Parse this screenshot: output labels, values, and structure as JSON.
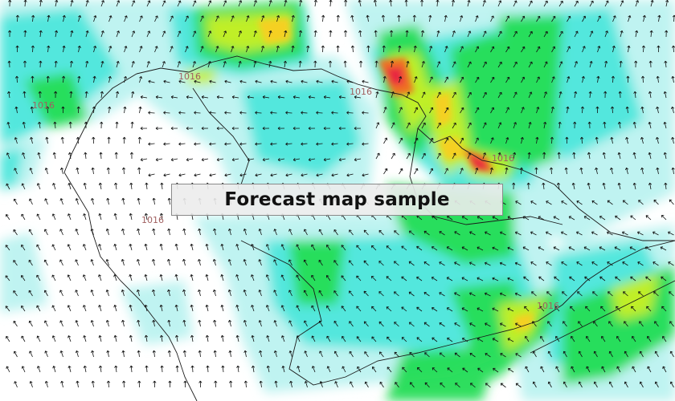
{
  "overlay": {
    "title": "Forecast map sample"
  },
  "isobars": [
    {
      "id": "isobar-west-coast",
      "label": "1016"
    },
    {
      "id": "isobar-north-gulf",
      "label": "1016"
    },
    {
      "id": "isobar-central-plateau",
      "label": "1016"
    },
    {
      "id": "isobar-east-valley",
      "label": "1016"
    },
    {
      "id": "isobar-southeast-ridge",
      "label": "1016"
    },
    {
      "id": "isobar-far-southeast",
      "label": "1016"
    }
  ],
  "colors": {
    "background": "#ffffff",
    "wind_light": "#b8f2f0",
    "wind_moderate": "#4de6dc",
    "wind_fresh": "#22dd55",
    "wind_strong": "#c8ef22",
    "wind_gale": "#f5d020",
    "wind_storm": "#f07020",
    "wind_extreme": "#e82840",
    "arrow": "#111111",
    "border": "#1a1a1a",
    "isobar_label": "#a06060"
  }
}
